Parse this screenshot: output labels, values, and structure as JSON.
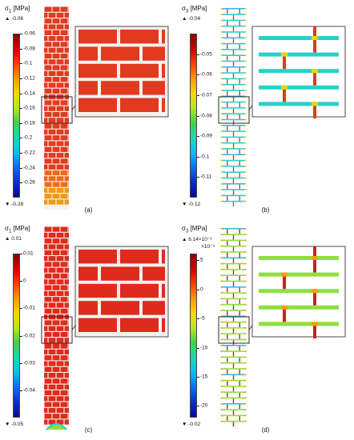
{
  "panels": [
    {
      "id": "a",
      "quantity": "σ",
      "subscript": "1",
      "unit": "[MPa]",
      "max_label": "▲ -0.06",
      "min_label": "▼ -0.28",
      "exponent": "",
      "ticks": [
        "-0.06",
        "-0.08",
        "-0.1",
        "-0.12",
        "-0.14",
        "-0.16",
        "-0.18",
        "-0.2",
        "-0.22",
        "-0.24",
        "-0.26"
      ],
      "range": [
        -0.28,
        -0.06
      ],
      "caption": "(a)",
      "pattern": "brick",
      "colors": {
        "wall": "#e23a1e",
        "joint": "#f4f1ef",
        "edge": "#f08a18"
      }
    },
    {
      "id": "b",
      "quantity": "σ",
      "subscript": "3",
      "unit": "[MPa]",
      "max_label": "▲ -0.04",
      "min_label": "▼ -0.12",
      "exponent": "",
      "ticks": [
        "-0.05",
        "-0.06",
        "-0.07",
        "-0.08",
        "-0.09",
        "-0.1",
        "-0.11"
      ],
      "range": [
        -0.12,
        -0.04
      ],
      "caption": "(b)",
      "pattern": "joints",
      "colors": {
        "bed": "#2ad0c8",
        "head": "#e23a1e",
        "node": "#e9d21b"
      }
    },
    {
      "id": "c",
      "quantity": "σ",
      "subscript": "1",
      "unit": "[MPa]",
      "max_label": "▲ 0.01",
      "min_label": "▼ -0.05",
      "exponent": "",
      "ticks": [
        "0.01",
        "0",
        "-0.01",
        "-0.02",
        "-0.03",
        "-0.04"
      ],
      "range": [
        -0.05,
        0.01
      ],
      "caption": "(c)",
      "pattern": "brick",
      "colors": {
        "wall": "#df2b1c",
        "joint": "#f4f1ef",
        "edge": "#2ad0c8"
      }
    },
    {
      "id": "d",
      "quantity": "σ",
      "subscript": "3",
      "unit": "[MPa]",
      "max_label": "▲ 6.14×10⁻³",
      "min_label": "▼ -0.02",
      "exponent": "×10⁻³",
      "ticks": [
        "5",
        "0",
        "-5",
        "-10",
        "-15",
        "-20"
      ],
      "range": [
        -22,
        6.14
      ],
      "caption": "(d)",
      "pattern": "joints",
      "colors": {
        "bed": "#8ee03a",
        "head": "#d0201a",
        "node": "#f0a012"
      }
    }
  ]
}
